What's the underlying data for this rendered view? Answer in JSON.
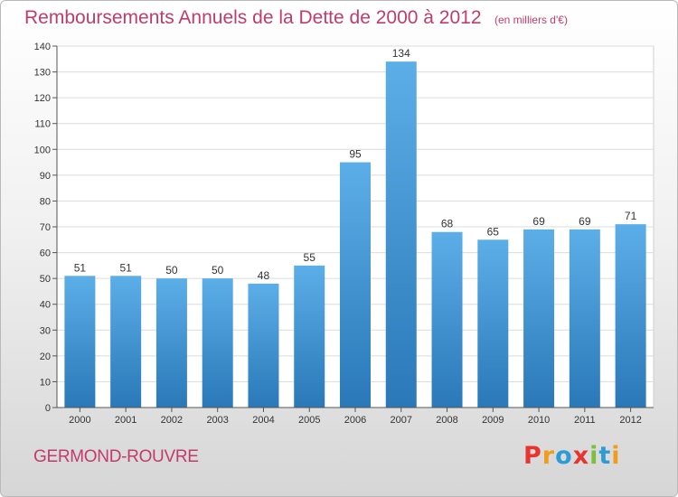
{
  "header": {
    "title": "Remboursements Annuels de la Dette de 2000 à 2012",
    "subtitle": "(en milliers d'€)"
  },
  "footer": {
    "commune": "GERMOND-ROUVRE",
    "logo_text": "Proxiti",
    "logo_colors": [
      "#e8342e",
      "#f39c1a",
      "#2c9bd6",
      "#e8342e",
      "#7bbf3a",
      "#2c9bd6",
      "#f39c1a"
    ]
  },
  "colors": {
    "title": "#c23b6b",
    "bar_top": "#5caee8",
    "bar_bottom": "#2a78b8"
  },
  "chart_data": {
    "type": "bar",
    "title": "Remboursements Annuels de la Dette de 2000 à 2012",
    "subtitle": "(en milliers d'€)",
    "categories": [
      "2000",
      "2001",
      "2002",
      "2003",
      "2004",
      "2005",
      "2006",
      "2007",
      "2008",
      "2009",
      "2010",
      "2011",
      "2012"
    ],
    "values": [
      51,
      51,
      50,
      50,
      48,
      55,
      95,
      134,
      68,
      65,
      69,
      69,
      71
    ],
    "ylim": [
      0,
      140
    ],
    "yticks": [
      0,
      10,
      20,
      30,
      40,
      50,
      60,
      70,
      80,
      90,
      100,
      110,
      120,
      130,
      140
    ],
    "grid": true
  }
}
